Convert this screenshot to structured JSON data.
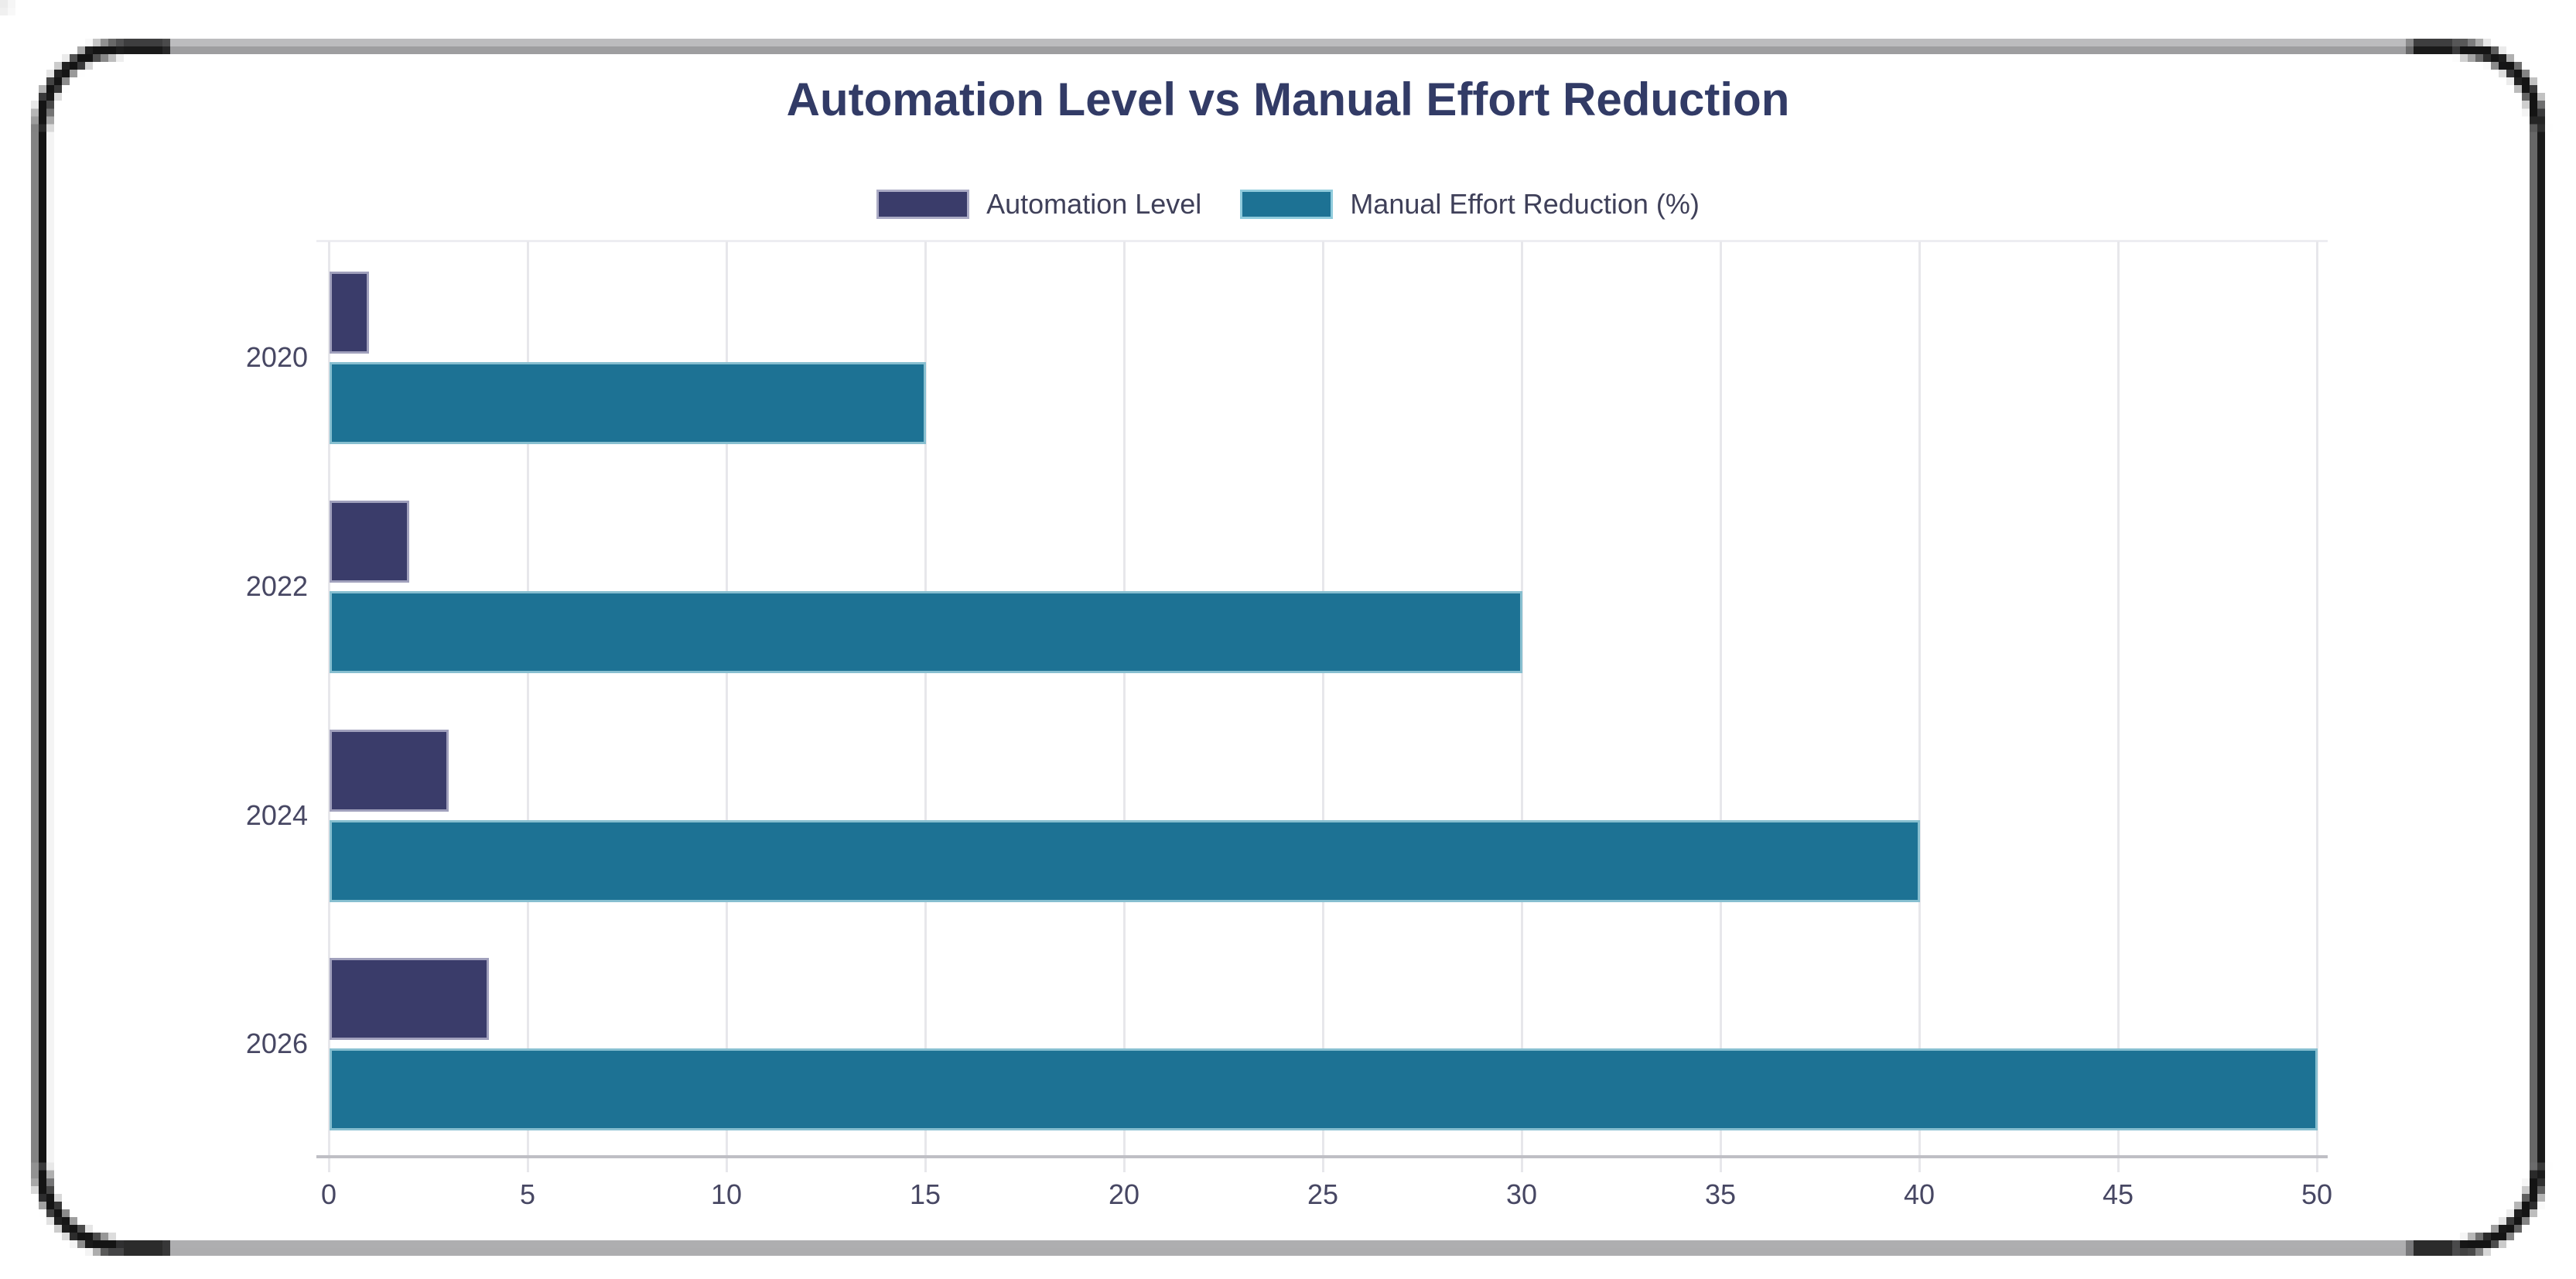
{
  "title": "Automation Level vs Manual Effort Reduction",
  "legend": {
    "items": [
      {
        "label": "Automation Level",
        "color": "#3A3C6A",
        "border_color": "#ABABC5"
      },
      {
        "label": "Manual Effort Reduction (%)",
        "color": "#1D7294",
        "border_color": "#8FCBDC"
      }
    ]
  },
  "chart_data": {
    "type": "bar",
    "orientation": "horizontal",
    "title": "Automation Level vs Manual Effort Reduction",
    "categories": [
      "2020",
      "2022",
      "2024",
      "2026"
    ],
    "series": [
      {
        "name": "Automation Level",
        "values": [
          1,
          2,
          3,
          4
        ],
        "color": "#3A3C6A",
        "border_color": "#A0A0BC"
      },
      {
        "name": "Manual Effort Reduction (%)",
        "values": [
          15,
          30,
          40,
          50
        ],
        "color": "#1D7294",
        "border_color": "#87BFD0"
      }
    ],
    "xlabel": "",
    "ylabel": "",
    "xlim": [
      0,
      50
    ],
    "xticks": [
      "0",
      "5",
      "10",
      "15",
      "20",
      "25",
      "30",
      "35",
      "40",
      "45",
      "50"
    ],
    "grid": true,
    "legend_position": "top"
  },
  "colors": {
    "title_text": "#323B66",
    "tick_text": "#474763",
    "legend_text": "#3F4059",
    "gridline": "#e7e7eb",
    "axis_line": "#bfbfc5",
    "plot_top_line": "#ededf1",
    "frame_black": "#141414",
    "frame_gray": "#4a4a4e",
    "background": "#ffffff"
  }
}
